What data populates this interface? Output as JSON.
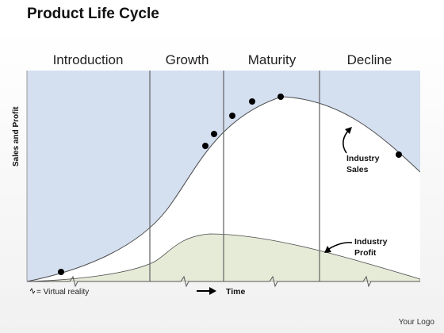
{
  "title": "Product Life Cycle",
  "phases": [
    "Introduction",
    "Growth",
    "Maturity",
    "Decline"
  ],
  "y_axis_label": "Sales and Profit",
  "x_axis_label": "Time",
  "callouts": {
    "sales": [
      "Industry",
      "Sales"
    ],
    "profit": [
      "Industry",
      "Profit"
    ]
  },
  "legend": "= Virtual reality",
  "logo": "Your Logo",
  "colors": {
    "phase_fill": "#d4dff0",
    "profit_fill": "#e6ebd8",
    "divider": "#6b6b6b",
    "curve": "#4a4a4a",
    "marker": "#000000"
  }
}
